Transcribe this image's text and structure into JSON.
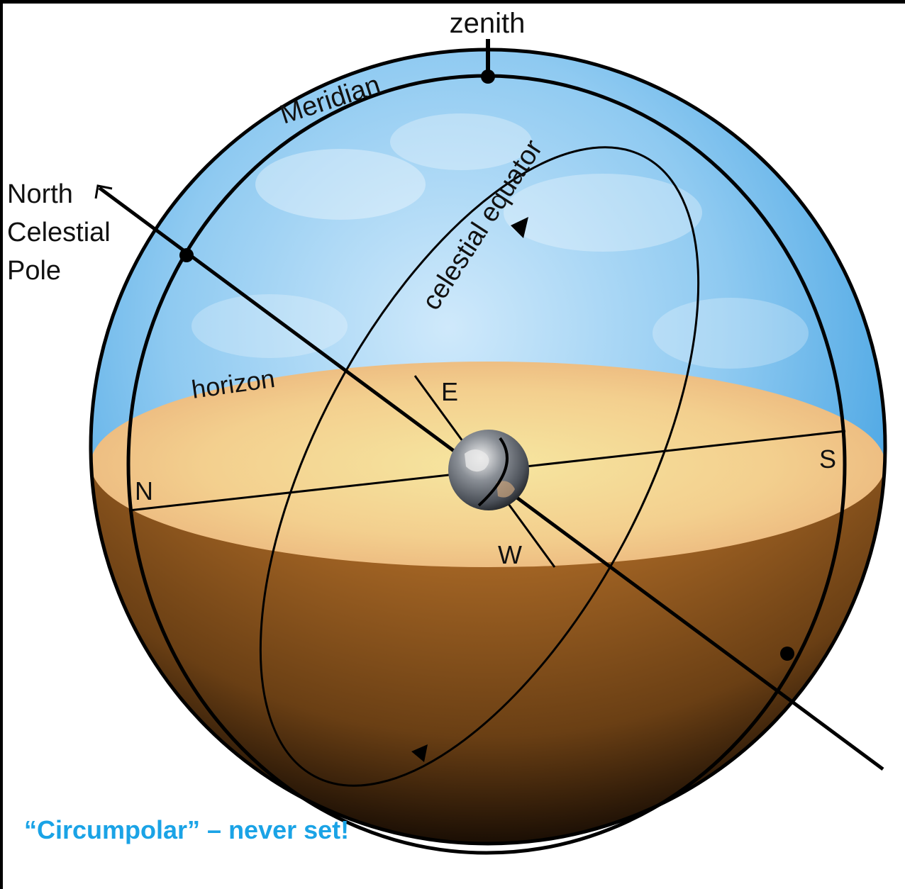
{
  "labels": {
    "zenith": "zenith",
    "meridian": "Meridian",
    "celestial_equator": "celestial equator",
    "horizon": "horizon",
    "north_celestial_pole": [
      "North",
      "Celestial",
      "Pole"
    ],
    "north": "N",
    "south": "S",
    "east": "E",
    "west": "W"
  },
  "caption": "“Circumpolar” – never set!",
  "colors": {
    "sky": "#3aa0e0",
    "ground_top": "#f2c98a",
    "ground_side": "#b0702a",
    "caption": "#1aa3e6",
    "lines": "#000000"
  }
}
